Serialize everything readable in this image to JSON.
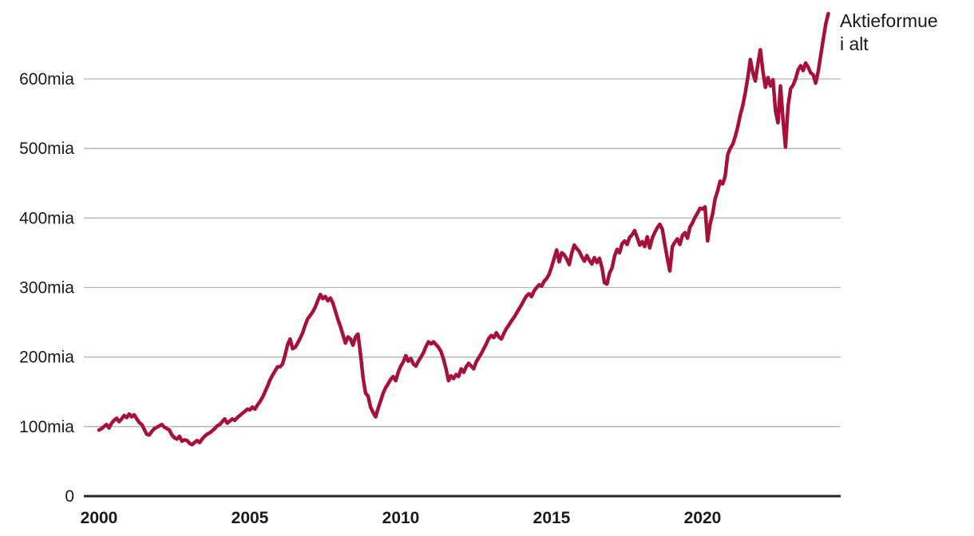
{
  "chart_data": {
    "type": "line",
    "title": "",
    "legend_position": "top-right",
    "grid": {
      "gridline_color": "#b3b3b3",
      "axis_color": "#262626",
      "background": "#ffffff",
      "gridlines_on": true
    },
    "x_axis": {
      "label": "",
      "range_years": [
        2000,
        2024.6
      ],
      "ticks": [
        {
          "value": 2000,
          "label": "2000"
        },
        {
          "value": 2005,
          "label": "2005"
        },
        {
          "value": 2010,
          "label": "2010"
        },
        {
          "value": 2015,
          "label": "2015"
        },
        {
          "value": 2020,
          "label": "2020"
        }
      ]
    },
    "y_axis": {
      "label": "",
      "range": [
        0,
        700
      ],
      "ticks": [
        {
          "value": 0,
          "label": "0"
        },
        {
          "value": 100,
          "label": "100mia"
        },
        {
          "value": 200,
          "label": "200mia"
        },
        {
          "value": 300,
          "label": "300mia"
        },
        {
          "value": 400,
          "label": "400mia"
        },
        {
          "value": 500,
          "label": "500mia"
        },
        {
          "value": 600,
          "label": "600mia"
        }
      ]
    },
    "series": [
      {
        "name": "Aktieformue i alt",
        "legend_lines": {
          "line1": "Aktieformue",
          "line2": "i alt"
        },
        "color": "#a6113a",
        "frequency": "monthly",
        "start_year": 2000,
        "values": [
          95,
          97,
          100,
          103,
          98,
          105,
          109,
          112,
          107,
          111,
          116,
          113,
          118,
          114,
          117,
          111,
          106,
          103,
          96,
          89,
          88,
          93,
          97,
          99,
          101,
          103,
          99,
          97,
          95,
          88,
          84,
          82,
          86,
          79,
          81,
          80,
          76,
          74,
          77,
          80,
          77,
          82,
          86,
          89,
          91,
          94,
          97,
          101,
          103,
          107,
          111,
          105,
          108,
          111,
          109,
          113,
          116,
          119,
          122,
          125,
          124,
          128,
          125,
          131,
          136,
          142,
          150,
          158,
          167,
          174,
          180,
          186,
          186,
          190,
          203,
          218,
          226,
          212,
          214,
          220,
          227,
          235,
          246,
          255,
          260,
          265,
          272,
          281,
          290,
          284,
          287,
          281,
          285,
          278,
          266,
          254,
          244,
          232,
          220,
          229,
          226,
          217,
          229,
          233,
          204,
          170,
          148,
          144,
          128,
          120,
          114,
          126,
          137,
          148,
          156,
          162,
          168,
          172,
          166,
          178,
          187,
          193,
          202,
          194,
          198,
          190,
          187,
          194,
          200,
          206,
          215,
          222,
          219,
          222,
          218,
          214,
          208,
          197,
          183,
          166,
          173,
          169,
          175,
          172,
          183,
          178,
          186,
          191,
          187,
          183,
          193,
          199,
          205,
          212,
          219,
          227,
          231,
          228,
          235,
          229,
          226,
          234,
          241,
          246,
          252,
          257,
          263,
          269,
          275,
          282,
          288,
          291,
          287,
          295,
          300,
          304,
          302,
          309,
          313,
          319,
          330,
          342,
          354,
          337,
          350,
          347,
          341,
          333,
          350,
          361,
          356,
          352,
          344,
          338,
          346,
          339,
          334,
          343,
          336,
          342,
          329,
          307,
          305,
          321,
          328,
          345,
          355,
          350,
          363,
          367,
          362,
          372,
          376,
          382,
          372,
          361,
          366,
          359,
          373,
          357,
          371,
          379,
          386,
          391,
          384,
          362,
          342,
          324,
          359,
          365,
          370,
          362,
          375,
          379,
          371,
          387,
          393,
          401,
          407,
          414,
          413,
          416,
          367,
          391,
          406,
          428,
          439,
          453,
          449,
          460,
          491,
          500,
          506,
          517,
          531,
          548,
          562,
          580,
          602,
          628,
          609,
          597,
          622,
          642,
          611,
          588,
          602,
          590,
          599,
          554,
          537,
          590,
          541,
          502,
          561,
          586,
          591,
          600,
          613,
          619,
          612,
          623,
          617,
          609,
          606,
          594,
          611,
          634,
          657,
          679,
          694
        ]
      }
    ]
  }
}
